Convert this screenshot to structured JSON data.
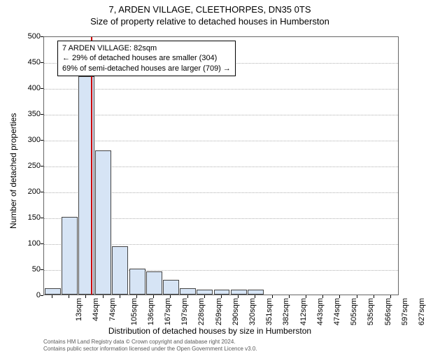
{
  "title_main": "7, ARDEN VILLAGE, CLEETHORPES, DN35 0TS",
  "title_sub": "Size of property relative to detached houses in Humberston",
  "y_axis_label": "Number of detached properties",
  "x_axis_label": "Distribution of detached houses by size in Humberston",
  "chart": {
    "type": "histogram",
    "ylim": [
      0,
      500
    ],
    "ytick_step": 50,
    "background_color": "#ffffff",
    "grid_color": "#b0b0b0",
    "bar_fill": "#d6e4f5",
    "bar_border": "#444444",
    "ref_line_color": "#cc0000",
    "bar_width": 0.95,
    "x_labels": [
      "13sqm",
      "44sqm",
      "74sqm",
      "105sqm",
      "136sqm",
      "167sqm",
      "197sqm",
      "228sqm",
      "259sqm",
      "290sqm",
      "320sqm",
      "351sqm",
      "382sqm",
      "412sqm",
      "443sqm",
      "474sqm",
      "505sqm",
      "535sqm",
      "566sqm",
      "597sqm",
      "627sqm"
    ],
    "bars": [
      12,
      150,
      422,
      278,
      93,
      50,
      45,
      28,
      12,
      10,
      10,
      10,
      10,
      0,
      0,
      0,
      0,
      0,
      0,
      0,
      0
    ],
    "ref_line_index": 2.25
  },
  "annotation": {
    "line1": "7 ARDEN VILLAGE: 82sqm",
    "line2": "← 29% of detached houses are smaller (304)",
    "line3": "69% of semi-detached houses are larger (709) →"
  },
  "footer": {
    "line1": "Contains HM Land Registry data © Crown copyright and database right 2024.",
    "line2": "Contains public sector information licensed under the Open Government Licence v3.0."
  }
}
